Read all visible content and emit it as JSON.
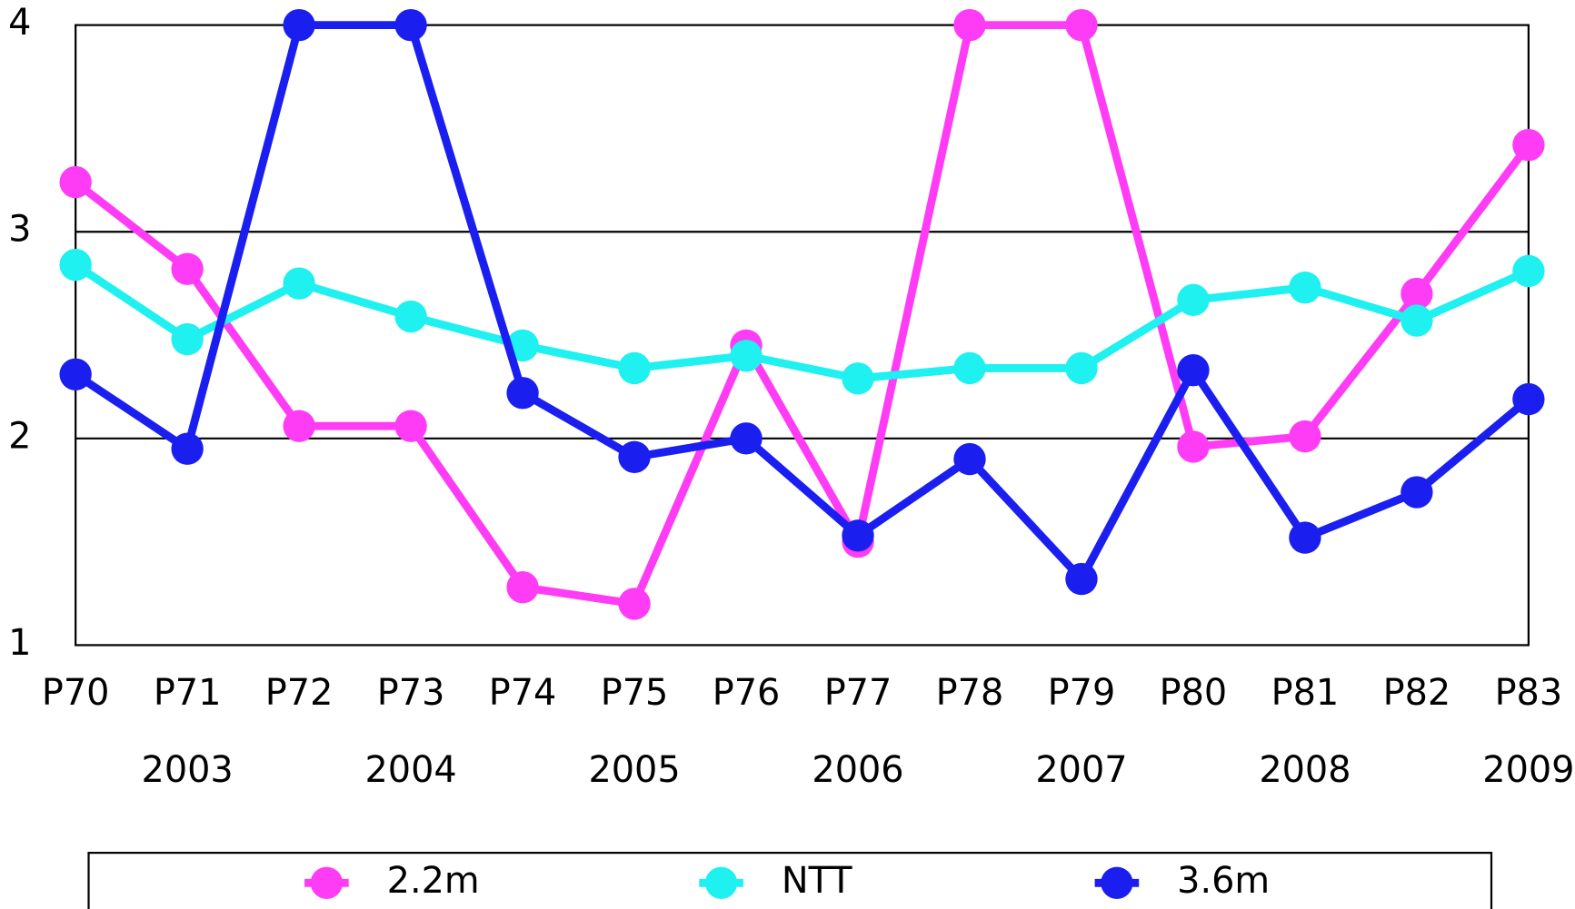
{
  "chart_data": {
    "type": "line",
    "categories": [
      "P70",
      "P71",
      "P72",
      "P73",
      "P74",
      "P75",
      "P76",
      "P77",
      "P78",
      "P79",
      "P80",
      "P81",
      "P82",
      "P83"
    ],
    "secondary_categories": [
      null,
      "2003",
      null,
      "2004",
      null,
      "2005",
      null,
      "2006",
      null,
      "2007",
      null,
      "2008",
      null,
      "2009"
    ],
    "series": [
      {
        "name": "2.2m",
        "color": "#ff3cf5",
        "values": [
          3.24,
          2.82,
          2.06,
          2.06,
          1.28,
          1.2,
          2.45,
          1.5,
          4,
          4,
          1.96,
          2.01,
          2.7,
          3.42
        ]
      },
      {
        "name": "NTT",
        "color": "#1ff0f0",
        "values": [
          2.84,
          2.48,
          2.75,
          2.59,
          2.45,
          2.34,
          2.4,
          2.29,
          2.34,
          2.34,
          2.67,
          2.73,
          2.57,
          2.81
        ]
      },
      {
        "name": "3.6m",
        "color": "#1a1ff0",
        "values": [
          2.31,
          1.95,
          4,
          4,
          2.22,
          1.91,
          2.0,
          1.53,
          1.9,
          1.32,
          2.33,
          1.52,
          1.74,
          2.19
        ]
      }
    ],
    "ylim": [
      1,
      4
    ],
    "yticks": [
      1,
      2,
      3,
      4
    ],
    "grid": true,
    "legend": "bottom"
  }
}
